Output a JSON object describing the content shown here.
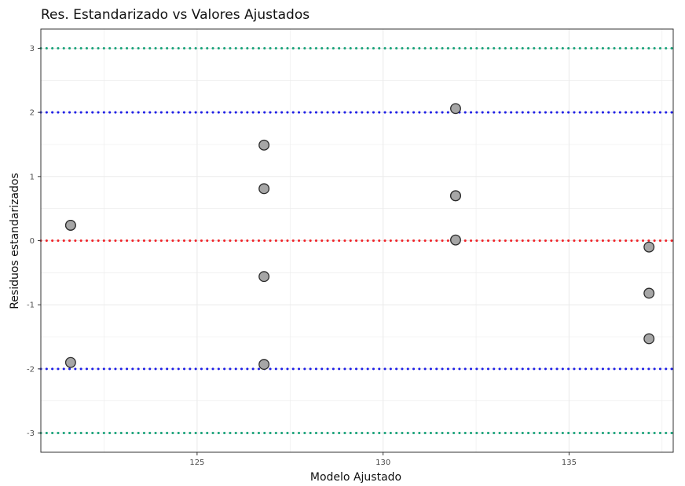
{
  "chart_data": {
    "type": "scatter",
    "title": "Res. Estandarizado vs Valores Ajustados",
    "xlabel": "Modelo Ajustado",
    "ylabel": "Residuos estandarizados",
    "xlim": [
      120.8,
      137.8
    ],
    "ylim": [
      -3.3,
      3.3
    ],
    "x_ticks": [
      125,
      130,
      135
    ],
    "x_tick_labels": [
      "125",
      "130",
      "135"
    ],
    "y_ticks": [
      3,
      2,
      1,
      0,
      -1,
      -2,
      -3
    ],
    "y_tick_labels": [
      "3",
      "2",
      "1",
      "0",
      "-1",
      "-2",
      "-3"
    ],
    "grid": true,
    "points": [
      {
        "x": 121.6,
        "y": 0.24
      },
      {
        "x": 121.6,
        "y": 0.24
      },
      {
        "x": 121.6,
        "y": -1.9
      },
      {
        "x": 126.8,
        "y": 1.49
      },
      {
        "x": 126.8,
        "y": 0.81
      },
      {
        "x": 126.8,
        "y": -0.56
      },
      {
        "x": 126.8,
        "y": -1.93
      },
      {
        "x": 131.95,
        "y": 2.06
      },
      {
        "x": 131.95,
        "y": 0.7
      },
      {
        "x": 131.95,
        "y": 0.7
      },
      {
        "x": 131.95,
        "y": 0.01
      },
      {
        "x": 137.15,
        "y": -0.1
      },
      {
        "x": 137.15,
        "y": -0.82
      },
      {
        "x": 137.15,
        "y": -1.53
      }
    ],
    "reference_lines": [
      {
        "y": 3,
        "color": "#1aa37a",
        "style": "dotted"
      },
      {
        "y": 2,
        "color": "#1f1fe6",
        "style": "dotted"
      },
      {
        "y": 0,
        "color": "#f0252a",
        "style": "dotted"
      },
      {
        "y": -2,
        "color": "#1f1fe6",
        "style": "dotted"
      },
      {
        "y": -3,
        "color": "#1aa37a",
        "style": "dotted"
      }
    ],
    "point_fill": "#a6a6a6",
    "point_stroke": "#2b2b2b",
    "grid_color": "#ebebeb",
    "panel_border_color": "#333333"
  }
}
